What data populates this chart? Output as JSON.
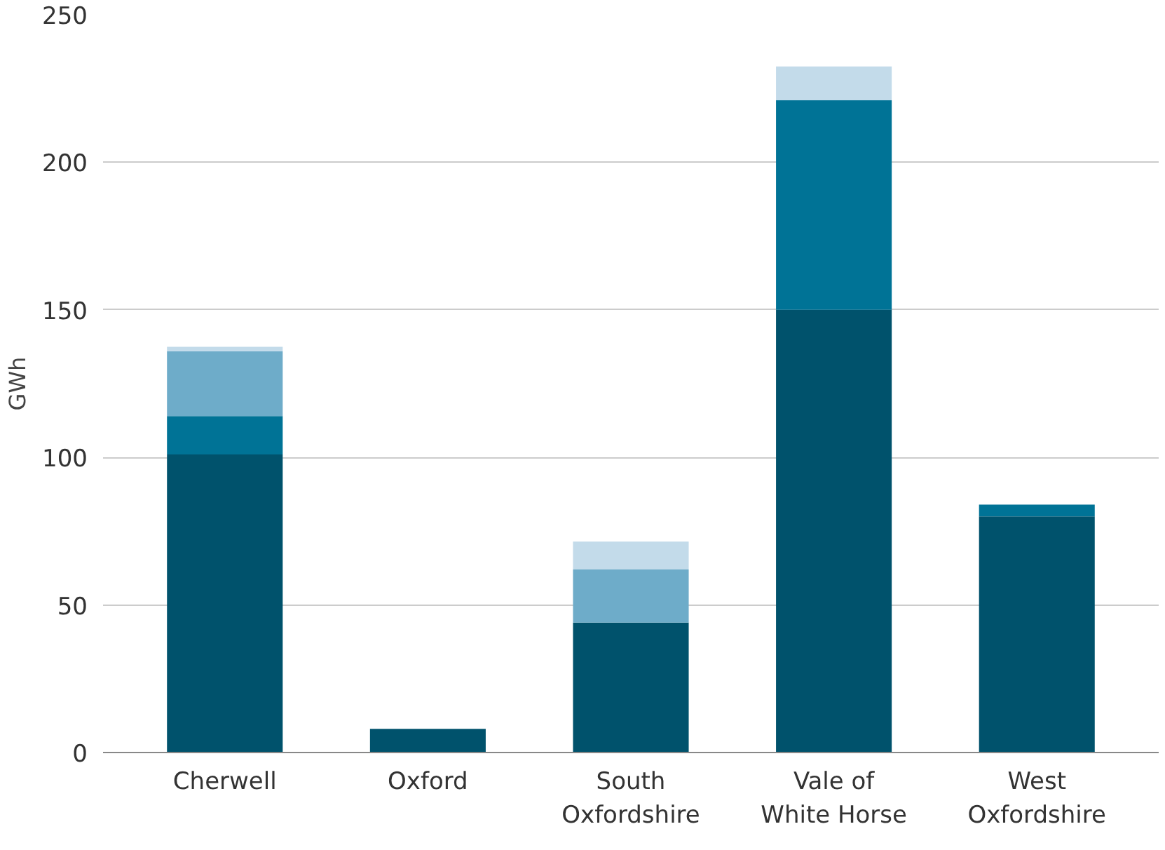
{
  "chart_data": {
    "type": "bar",
    "stacked": true,
    "ylabel": "GWh",
    "categories": [
      "Cherwell",
      "Oxford",
      "South\nOxfordshire",
      "Vale of\nWhite Horse",
      "West\nOxfordshire"
    ],
    "series": [
      {
        "color": "#00526c",
        "values": [
          101,
          8,
          44,
          150,
          80
        ]
      },
      {
        "color": "#007396",
        "values": [
          13,
          0,
          0,
          71,
          4
        ]
      },
      {
        "color": "#6eacc9",
        "values": [
          22,
          0,
          18,
          0,
          0
        ]
      },
      {
        "color": "#c3dbea",
        "values": [
          1.5,
          0,
          9.5,
          11.5,
          0
        ]
      }
    ],
    "ylim": [
      0,
      250
    ],
    "yticks": [
      0,
      50,
      100,
      150,
      200,
      250
    ],
    "grid": "y"
  }
}
